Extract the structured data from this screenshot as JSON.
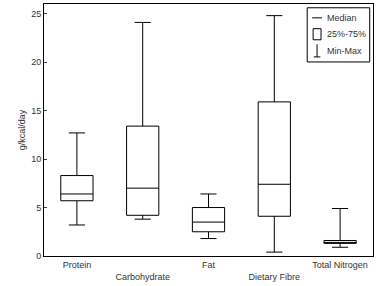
{
  "chart_data": {
    "type": "box",
    "y_label": "g/kcal/day",
    "categories": [
      "Protein",
      "Carbohydrate",
      "Fat",
      "Dietary Fibre",
      "Total Nitrogen"
    ],
    "min": [
      3.2,
      3.8,
      1.8,
      0.4,
      0.9
    ],
    "q1": [
      5.7,
      4.2,
      2.5,
      4.1,
      1.3
    ],
    "median": [
      6.4,
      7.0,
      3.5,
      7.4,
      1.4
    ],
    "q3": [
      8.3,
      13.4,
      5.0,
      15.9,
      1.6
    ],
    "max": [
      12.7,
      24.1,
      6.4,
      24.8,
      4.9
    ],
    "color": "#000000",
    "ylim": [
      0,
      26
    ],
    "yticks": [
      0,
      5,
      10,
      15,
      20,
      25
    ],
    "grid": false,
    "legend": "upper right",
    "legend_entries": [
      "Median",
      "25%-75%",
      "Min-Max"
    ]
  }
}
